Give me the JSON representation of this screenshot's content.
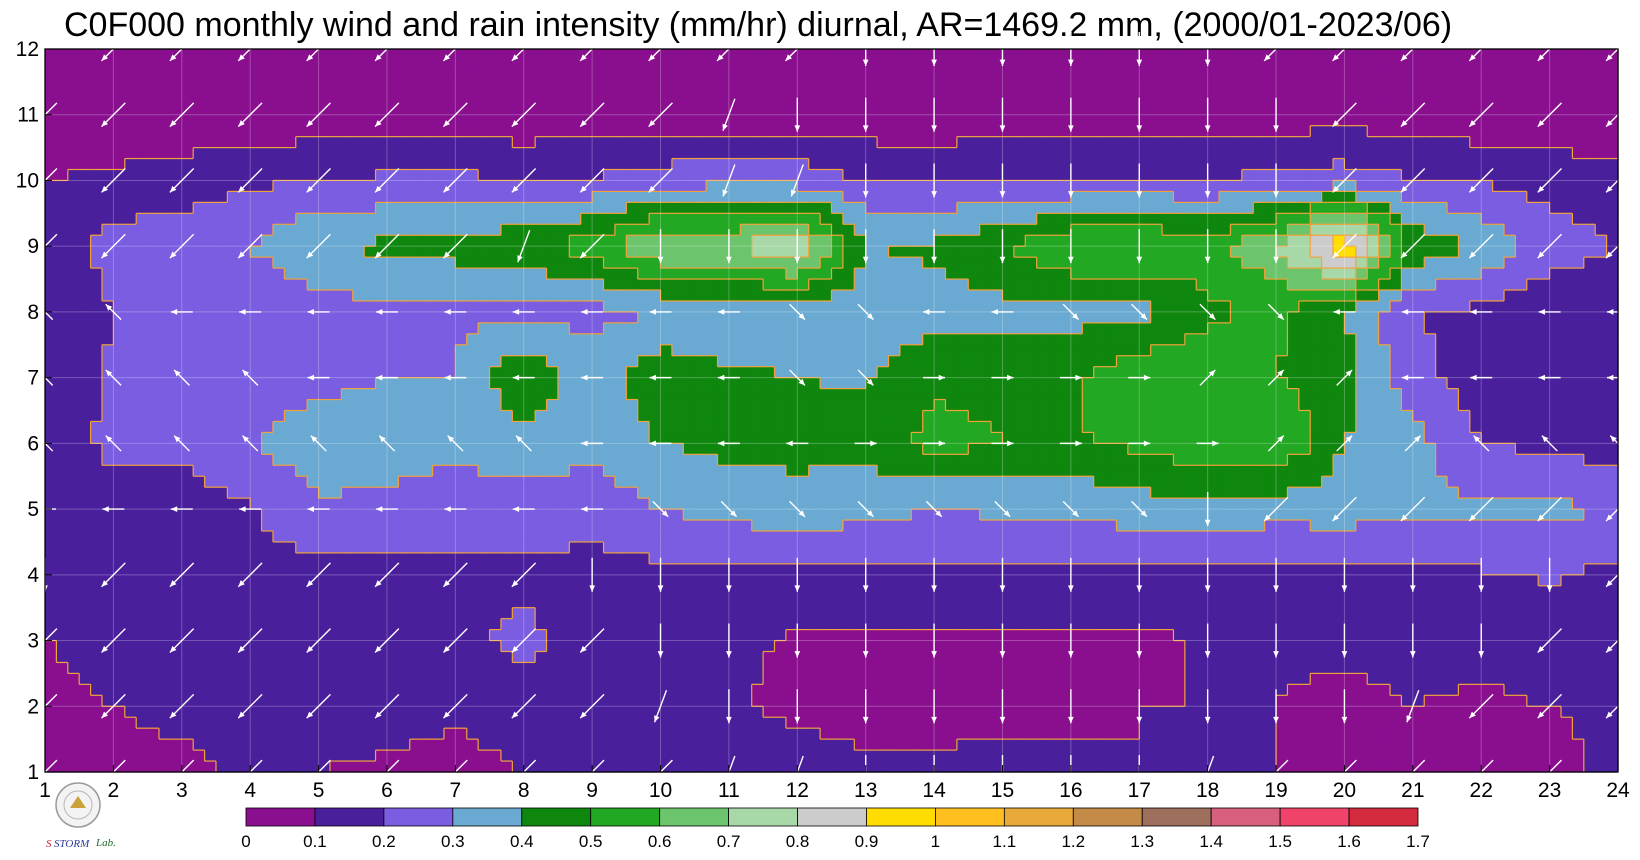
{
  "chart_data": {
    "type": "heatmap",
    "title": "C0F000 monthly wind and rain intensity (mm/hr) diurnal, AR=1469.2 mm, (2000/01-2023/06)",
    "xlabel": "",
    "ylabel": "",
    "x_ticks": [
      "1",
      "2",
      "3",
      "4",
      "5",
      "6",
      "7",
      "8",
      "9",
      "10",
      "11",
      "12",
      "13",
      "14",
      "15",
      "16",
      "17",
      "18",
      "19",
      "20",
      "21",
      "22",
      "23",
      "24"
    ],
    "y_ticks": [
      "1",
      "2",
      "3",
      "4",
      "5",
      "6",
      "7",
      "8",
      "9",
      "10",
      "11",
      "12"
    ],
    "xlim": [
      1,
      24
    ],
    "ylim": [
      1,
      12
    ],
    "hours": [
      1,
      2,
      3,
      4,
      5,
      6,
      7,
      8,
      9,
      10,
      11,
      12,
      13,
      14,
      15,
      16,
      17,
      18,
      19,
      20,
      21,
      22,
      23,
      24
    ],
    "months": [
      1,
      2,
      3,
      4,
      5,
      6,
      7,
      8,
      9,
      10,
      11,
      12
    ],
    "rain_intensity_mm_per_hr": [
      [
        0.05,
        0.08,
        0.08,
        0.12,
        0.1,
        0.08,
        0.06,
        0.1,
        0.12,
        0.11,
        0.13,
        0.15,
        0.11,
        0.13,
        0.15,
        0.13,
        0.1,
        0.1,
        0.1,
        0.07,
        0.08,
        0.09,
        0.05,
        0.15
      ],
      [
        0.08,
        0.1,
        0.12,
        0.15,
        0.15,
        0.15,
        0.12,
        0.16,
        0.16,
        0.13,
        0.11,
        0.08,
        0.07,
        0.05,
        0.05,
        0.07,
        0.1,
        0.1,
        0.1,
        0.08,
        0.1,
        0.09,
        0.1,
        0.12
      ],
      [
        0.1,
        0.12,
        0.14,
        0.15,
        0.18,
        0.18,
        0.18,
        0.22,
        0.16,
        0.12,
        0.12,
        0.09,
        0.08,
        0.08,
        0.08,
        0.08,
        0.08,
        0.11,
        0.11,
        0.12,
        0.12,
        0.12,
        0.13,
        0.15
      ],
      [
        0.15,
        0.18,
        0.16,
        0.17,
        0.16,
        0.16,
        0.18,
        0.18,
        0.17,
        0.17,
        0.17,
        0.17,
        0.17,
        0.17,
        0.17,
        0.17,
        0.18,
        0.18,
        0.17,
        0.16,
        0.17,
        0.19,
        0.21,
        0.17
      ],
      [
        0.16,
        0.16,
        0.16,
        0.19,
        0.28,
        0.28,
        0.24,
        0.25,
        0.23,
        0.3,
        0.34,
        0.35,
        0.34,
        0.3,
        0.32,
        0.32,
        0.35,
        0.37,
        0.34,
        0.35,
        0.32,
        0.32,
        0.32,
        0.3
      ],
      [
        0.15,
        0.22,
        0.22,
        0.3,
        0.37,
        0.34,
        0.33,
        0.36,
        0.34,
        0.4,
        0.43,
        0.44,
        0.43,
        0.54,
        0.5,
        0.49,
        0.52,
        0.58,
        0.6,
        0.4,
        0.34,
        0.2,
        0.18,
        0.15
      ],
      [
        0.12,
        0.22,
        0.24,
        0.21,
        0.27,
        0.3,
        0.3,
        0.5,
        0.33,
        0.48,
        0.42,
        0.4,
        0.39,
        0.48,
        0.47,
        0.48,
        0.59,
        0.58,
        0.5,
        0.45,
        0.23,
        0.15,
        0.12,
        0.1
      ],
      [
        0.1,
        0.2,
        0.2,
        0.21,
        0.24,
        0.28,
        0.28,
        0.27,
        0.27,
        0.3,
        0.31,
        0.33,
        0.33,
        0.35,
        0.37,
        0.37,
        0.36,
        0.48,
        0.52,
        0.4,
        0.2,
        0.18,
        0.12,
        0.12
      ],
      [
        0.12,
        0.24,
        0.26,
        0.3,
        0.4,
        0.42,
        0.44,
        0.47,
        0.55,
        0.7,
        0.7,
        0.82,
        0.4,
        0.42,
        0.5,
        0.6,
        0.62,
        0.55,
        0.7,
        1.0,
        0.48,
        0.38,
        0.25,
        0.2
      ],
      [
        0.1,
        0.12,
        0.15,
        0.18,
        0.2,
        0.22,
        0.22,
        0.21,
        0.21,
        0.25,
        0.27,
        0.26,
        0.2,
        0.19,
        0.2,
        0.2,
        0.2,
        0.21,
        0.22,
        0.25,
        0.21,
        0.19,
        0.16,
        0.13
      ],
      [
        0.02,
        0.03,
        0.02,
        0.04,
        0.03,
        0.02,
        0.02,
        0.02,
        0.03,
        0.04,
        0.04,
        0.04,
        0.03,
        0.03,
        0.04,
        0.03,
        0.04,
        0.04,
        0.05,
        0.06,
        0.04,
        0.03,
        0.03,
        0.03
      ],
      [
        0.02,
        0.02,
        0.02,
        0.02,
        0.02,
        0.02,
        0.02,
        0.02,
        0.02,
        0.02,
        0.02,
        0.02,
        0.02,
        0.02,
        0.02,
        0.02,
        0.02,
        0.02,
        0.02,
        0.02,
        0.02,
        0.02,
        0.02,
        0.02
      ]
    ],
    "contour_levels": [
      0,
      0.1,
      0.2,
      0.3,
      0.4,
      0.5,
      0.6,
      0.7,
      0.8,
      0.9,
      1,
      1.1,
      1.2,
      1.3,
      1.4,
      1.5,
      1.6,
      1.7
    ],
    "colorbar_labels": [
      "0",
      "0.1",
      "0.2",
      "0.3",
      "0.4",
      "0.5",
      "0.6",
      "0.7",
      "0.8",
      "0.9",
      "1",
      "1.1",
      "1.2",
      "1.3",
      "1.4",
      "1.5",
      "1.6",
      "1.7"
    ],
    "colorbar_colors": [
      "#8a0f8f",
      "#4a1f9c",
      "#7a5de0",
      "#6aaad2",
      "#0f870f",
      "#22a822",
      "#6cc46c",
      "#a8d8a8",
      "#cccccc",
      "#ffdd00",
      "#ffbf1f",
      "#e8a83a",
      "#c48a48",
      "#9e6f5c",
      "#d9607c",
      "#ef4369",
      "#d42a3d"
    ],
    "contour_line_color": "#f2a23a",
    "wind_arrow_color": "#ffffff",
    "wind_arrows": [
      [
        "SW",
        "SW",
        "SW",
        "SW",
        "SW",
        "SW",
        "SW",
        "SW",
        "SW",
        "SW",
        "SSW",
        "SSW",
        "S",
        "S",
        "S",
        "S",
        "S",
        "SSW",
        "SW",
        "SW",
        "SW",
        "SW",
        "SW",
        "SW"
      ],
      [
        "SW",
        "SW",
        "SW",
        "SW",
        "SW",
        "SW",
        "SW",
        "SW",
        "SW",
        "SSW",
        "S",
        "S",
        "S",
        "S",
        "S",
        "S",
        "S",
        "S",
        "S",
        "S",
        "SSW",
        "SW",
        "SW",
        "SW"
      ],
      [
        "SW",
        "SW",
        "SW",
        "SW",
        "SW",
        "SW",
        "SW",
        "SW",
        "SW",
        "S",
        "S",
        "S",
        "S",
        "S",
        "S",
        "S",
        "S",
        "S",
        "S",
        "S",
        "S",
        "S",
        "SW",
        "SW"
      ],
      [
        "S",
        "SW",
        "SW",
        "SW",
        "SW",
        "SW",
        "SW",
        "SW",
        "S",
        "S",
        "S",
        "S",
        "S",
        "S",
        "S",
        "S",
        "S",
        "S",
        "S",
        "S",
        "S",
        "S",
        "S",
        "SW"
      ],
      [
        "W",
        "W",
        "W",
        "W",
        "W",
        "W",
        "W",
        "W",
        "W",
        "SE",
        "SE",
        "SE",
        "SE",
        "SE",
        "SE",
        "SE",
        "SE",
        "S",
        "SW",
        "SW",
        "SW",
        "SW",
        "SW",
        "SW"
      ],
      [
        "NW",
        "NW",
        "NW",
        "NW",
        "NW",
        "NW",
        "NW",
        "NW",
        "W",
        "W",
        "W",
        "W",
        "E",
        "E",
        "E",
        "E",
        "E",
        "E",
        "NE",
        "NE",
        "NE",
        "NW",
        "NW",
        "NW"
      ],
      [
        "NW",
        "NW",
        "NW",
        "NW",
        "W",
        "W",
        "W",
        "W",
        "W",
        "W",
        "W",
        "SE",
        "SE",
        "E",
        "E",
        "E",
        "E",
        "NE",
        "NE",
        "NE",
        "W",
        "W",
        "W",
        "W"
      ],
      [
        "NW",
        "NW",
        "W",
        "W",
        "W",
        "W",
        "W",
        "W",
        "W",
        "W",
        "W",
        "SE",
        "SE",
        "W",
        "W",
        "SE",
        "SE",
        "SE",
        "SE",
        "W",
        "W",
        "W",
        "W",
        "W"
      ],
      [
        "SW",
        "SW",
        "SW",
        "SW",
        "SW",
        "SW",
        "SW",
        "SSW",
        "SW",
        "S",
        "S",
        "S",
        "S",
        "S",
        "S",
        "S",
        "S",
        "S",
        "S",
        "SW",
        "SW",
        "SW",
        "SW",
        "SW"
      ],
      [
        "SW",
        "SW",
        "SW",
        "SW",
        "SW",
        "SW",
        "SW",
        "SW",
        "SW",
        "SW",
        "SSW",
        "SSW",
        "S",
        "S",
        "S",
        "S",
        "S",
        "S",
        "S",
        "SW",
        "SW",
        "SW",
        "SW",
        "SW"
      ],
      [
        "SW",
        "SW",
        "SW",
        "SW",
        "SW",
        "SW",
        "SW",
        "SW",
        "SW",
        "SW",
        "SSW",
        "S",
        "S",
        "S",
        "S",
        "S",
        "S",
        "S",
        "S",
        "SW",
        "SW",
        "SW",
        "SW",
        "SW"
      ],
      [
        "SW",
        "SW",
        "SW",
        "SW",
        "SW",
        "SW",
        "SW",
        "SW",
        "SW",
        "SW",
        "SW",
        "SW",
        "S",
        "S",
        "S",
        "S",
        "S",
        "S",
        "SW",
        "SW",
        "SW",
        "SW",
        "SW",
        "SW"
      ]
    ]
  }
}
